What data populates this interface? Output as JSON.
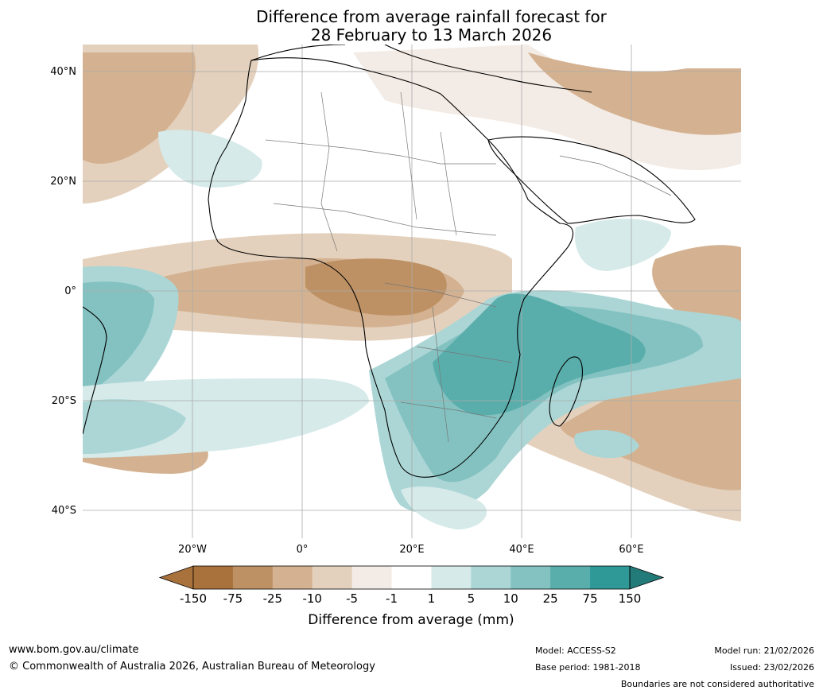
{
  "title": {
    "line1": "Difference from average rainfall forecast for",
    "line2": "28 February to 13 March 2026"
  },
  "map": {
    "lat_labels": [
      "40°N",
      "20°N",
      "0°",
      "20°S",
      "40°S"
    ],
    "lon_labels": [
      "20°W",
      "0°",
      "20°E",
      "40°E",
      "60°E"
    ]
  },
  "legend": {
    "title": "Difference from average (mm)",
    "ticks": [
      "-150",
      "-75",
      "-25",
      "-10",
      "-5",
      "-1",
      "1",
      "5",
      "10",
      "25",
      "75",
      "150"
    ],
    "colors": [
      "#a9713b",
      "#be9164",
      "#d4b291",
      "#e4d1bd",
      "#f3ebe5",
      "#ffffff",
      "#d5eae9",
      "#abd6d5",
      "#83c2c1",
      "#59aeac",
      "#2f9997",
      "#237b79"
    ],
    "under_color": "#a9713b",
    "over_color": "#237b79"
  },
  "footer": {
    "website": "www.bom.gov.au/climate",
    "copyright": "© Commonwealth of Australia 2026, Australian Bureau of Meteorology",
    "model": "Model: ACCESS-S2",
    "base_period": "Base period: 1981-2018",
    "model_run": "Model run: 21/02/2026",
    "issued": "Issued: 23/02/2026",
    "disclaimer": "Boundaries are not considered authoritative"
  }
}
